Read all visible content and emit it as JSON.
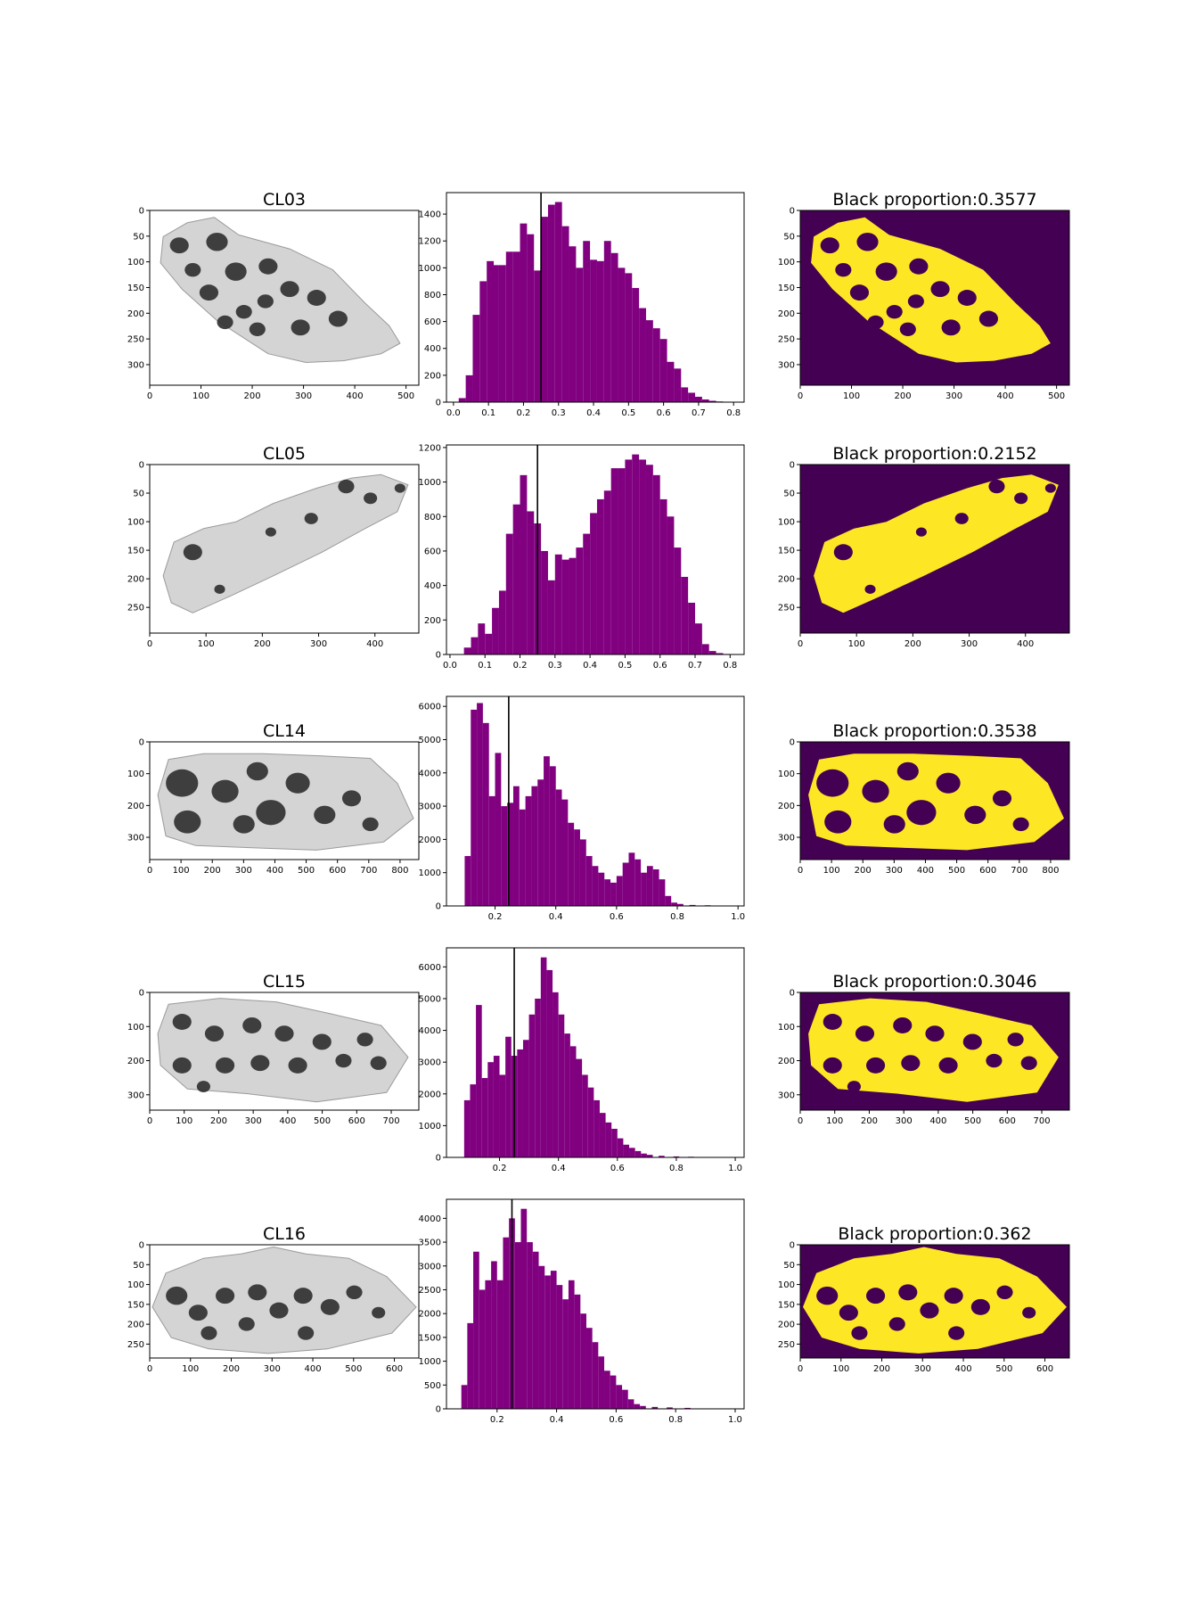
{
  "colors": {
    "histogram_bar": "#800080",
    "threshold_line": "#000000",
    "mask_background": "#440154",
    "mask_foreground": "#fde725",
    "gray_light": "#d4d4d4",
    "gray_dark": "#2e2e2e"
  },
  "chart_data": [
    {
      "type": "image",
      "title": "CL03",
      "image_content": "grayscale-specimen-photo",
      "xlim": [
        0,
        525
      ],
      "ylim": [
        340,
        0
      ],
      "xticks": [
        "0",
        "100",
        "200",
        "300",
        "400",
        "500"
      ],
      "yticks": [
        "0",
        "50",
        "100",
        "150",
        "200",
        "250",
        "300"
      ],
      "ytick_values": [
        0,
        50,
        100,
        150,
        200,
        250,
        300
      ]
    },
    {
      "type": "bar",
      "title": "",
      "xlim": [
        -0.02,
        0.83
      ],
      "ylim": [
        0,
        1560
      ],
      "xticks": [
        "0.0",
        "0.1",
        "0.2",
        "0.3",
        "0.4",
        "0.5",
        "0.6",
        "0.7",
        "0.8"
      ],
      "xtick_values": [
        0,
        0.1,
        0.2,
        0.3,
        0.4,
        0.5,
        0.6,
        0.7,
        0.8
      ],
      "yticks": [
        "0",
        "200",
        "400",
        "600",
        "800",
        "1000",
        "1200",
        "1400"
      ],
      "ytick_values": [
        0,
        200,
        400,
        600,
        800,
        1000,
        1200,
        1400
      ],
      "threshold": 0.25,
      "x": [
        0.025,
        0.045,
        0.065,
        0.085,
        0.105,
        0.12,
        0.14,
        0.16,
        0.18,
        0.2,
        0.22,
        0.24,
        0.26,
        0.28,
        0.3,
        0.32,
        0.34,
        0.36,
        0.38,
        0.4,
        0.42,
        0.44,
        0.46,
        0.48,
        0.5,
        0.52,
        0.54,
        0.56,
        0.58,
        0.6,
        0.62,
        0.64,
        0.66,
        0.68,
        0.7,
        0.72,
        0.74,
        0.76,
        0.78
      ],
      "values": [
        30,
        200,
        650,
        900,
        1050,
        1020,
        1020,
        1120,
        1120,
        1330,
        1250,
        980,
        1380,
        1470,
        1490,
        1310,
        1160,
        1000,
        1200,
        1060,
        1050,
        1200,
        1110,
        1000,
        960,
        850,
        700,
        610,
        550,
        470,
        300,
        250,
        110,
        70,
        40,
        20,
        10,
        5,
        2
      ]
    },
    {
      "type": "image",
      "title": "Black proportion:0.3577",
      "image_content": "binary-mask",
      "xlim": [
        0,
        525
      ],
      "ylim": [
        340,
        0
      ],
      "xticks": [
        "0",
        "100",
        "200",
        "300",
        "400",
        "500"
      ],
      "yticks": [
        "0",
        "50",
        "100",
        "150",
        "200",
        "250",
        "300"
      ],
      "ytick_values": [
        0,
        50,
        100,
        150,
        200,
        250,
        300
      ]
    },
    {
      "type": "image",
      "title": "CL05",
      "image_content": "grayscale-specimen-photo",
      "xlim": [
        0,
        478
      ],
      "ylim": [
        295,
        0
      ],
      "xticks": [
        "0",
        "100",
        "200",
        "300",
        "400"
      ],
      "yticks": [
        "0",
        "50",
        "100",
        "150",
        "200",
        "250"
      ],
      "ytick_values": [
        0,
        50,
        100,
        150,
        200,
        250
      ]
    },
    {
      "type": "bar",
      "title": "",
      "xlim": [
        -0.01,
        0.84
      ],
      "ylim": [
        0,
        1215
      ],
      "xticks": [
        "0.0",
        "0.1",
        "0.2",
        "0.3",
        "0.4",
        "0.5",
        "0.6",
        "0.7",
        "0.8"
      ],
      "xtick_values": [
        0,
        0.1,
        0.2,
        0.3,
        0.4,
        0.5,
        0.6,
        0.7,
        0.8
      ],
      "yticks": [
        "0",
        "200",
        "400",
        "600",
        "800",
        "1000",
        "1200"
      ],
      "ytick_values": [
        0,
        200,
        400,
        600,
        800,
        1000,
        1200
      ],
      "threshold": 0.25,
      "x": [
        0.05,
        0.07,
        0.09,
        0.11,
        0.13,
        0.15,
        0.17,
        0.19,
        0.21,
        0.23,
        0.25,
        0.27,
        0.29,
        0.31,
        0.33,
        0.35,
        0.37,
        0.39,
        0.41,
        0.43,
        0.45,
        0.47,
        0.49,
        0.51,
        0.53,
        0.55,
        0.57,
        0.59,
        0.61,
        0.63,
        0.65,
        0.67,
        0.69,
        0.71,
        0.73,
        0.75,
        0.77,
        0.79
      ],
      "values": [
        40,
        100,
        180,
        120,
        270,
        370,
        700,
        870,
        1040,
        830,
        760,
        600,
        430,
        580,
        550,
        560,
        620,
        700,
        820,
        900,
        950,
        1080,
        1080,
        1130,
        1160,
        1130,
        1100,
        1040,
        900,
        800,
        620,
        450,
        300,
        180,
        60,
        20,
        8,
        3
      ]
    },
    {
      "type": "image",
      "title": "Black proportion:0.2152",
      "image_content": "binary-mask",
      "xlim": [
        0,
        478
      ],
      "ylim": [
        295,
        0
      ],
      "xticks": [
        "0",
        "100",
        "200",
        "300",
        "400"
      ],
      "yticks": [
        "0",
        "50",
        "100",
        "150",
        "200",
        "250"
      ],
      "ytick_values": [
        0,
        50,
        100,
        150,
        200,
        250
      ]
    },
    {
      "type": "image",
      "title": "CL14",
      "image_content": "grayscale-specimen-photo",
      "xlim": [
        0,
        860
      ],
      "ylim": [
        370,
        0
      ],
      "xticks": [
        "0",
        "100",
        "200",
        "300",
        "400",
        "500",
        "600",
        "700",
        "800"
      ],
      "yticks": [
        "0",
        "100",
        "200",
        "300"
      ],
      "ytick_values": [
        0,
        100,
        200,
        300
      ]
    },
    {
      "type": "bar",
      "title": "",
      "xlim": [
        0.04,
        1.02
      ],
      "ylim": [
        0,
        6300
      ],
      "xticks": [
        "0.2",
        "0.4",
        "0.6",
        "0.8",
        "1.0"
      ],
      "xtick_values": [
        0.2,
        0.4,
        0.6,
        0.8,
        1.0
      ],
      "yticks": [
        "0",
        "1000",
        "2000",
        "3000",
        "4000",
        "5000",
        "6000"
      ],
      "ytick_values": [
        0,
        1000,
        2000,
        3000,
        4000,
        5000,
        6000
      ],
      "threshold": 0.245,
      "x": [
        0.11,
        0.13,
        0.15,
        0.17,
        0.19,
        0.21,
        0.23,
        0.25,
        0.27,
        0.29,
        0.31,
        0.33,
        0.35,
        0.37,
        0.39,
        0.41,
        0.43,
        0.45,
        0.47,
        0.49,
        0.51,
        0.53,
        0.55,
        0.57,
        0.59,
        0.61,
        0.63,
        0.65,
        0.67,
        0.69,
        0.71,
        0.73,
        0.75,
        0.77,
        0.79,
        0.81,
        0.85,
        0.9,
        0.95
      ],
      "values": [
        1500,
        5900,
        6100,
        5500,
        3300,
        4600,
        3000,
        3100,
        3600,
        2900,
        3300,
        3600,
        3800,
        4500,
        4200,
        3500,
        3200,
        2500,
        2300,
        2000,
        1500,
        1200,
        1000,
        800,
        700,
        900,
        1300,
        1600,
        1400,
        1000,
        1200,
        1100,
        800,
        300,
        100,
        60,
        30,
        20,
        10
      ]
    },
    {
      "type": "image",
      "title": "Black proportion:0.3538",
      "image_content": "binary-mask",
      "xlim": [
        0,
        860
      ],
      "ylim": [
        370,
        0
      ],
      "xticks": [
        "0",
        "100",
        "200",
        "300",
        "400",
        "500",
        "600",
        "700",
        "800"
      ],
      "yticks": [
        "0",
        "100",
        "200",
        "300"
      ],
      "ytick_values": [
        0,
        100,
        200,
        300
      ]
    },
    {
      "type": "image",
      "title": "CL15",
      "image_content": "grayscale-specimen-photo",
      "xlim": [
        0,
        780
      ],
      "ylim": [
        345,
        0
      ],
      "xticks": [
        "0",
        "100",
        "200",
        "300",
        "400",
        "500",
        "600",
        "700"
      ],
      "yticks": [
        "0",
        "100",
        "200",
        "300"
      ],
      "ytick_values": [
        0,
        100,
        200,
        300
      ]
    },
    {
      "type": "bar",
      "title": "",
      "xlim": [
        0.02,
        1.03
      ],
      "ylim": [
        0,
        6600
      ],
      "xticks": [
        "0.2",
        "0.4",
        "0.6",
        "0.8",
        "1.0"
      ],
      "xtick_values": [
        0.2,
        0.4,
        0.6,
        0.8,
        1.0
      ],
      "yticks": [
        "0",
        "1000",
        "2000",
        "3000",
        "4000",
        "5000",
        "6000"
      ],
      "ytick_values": [
        0,
        1000,
        2000,
        3000,
        4000,
        5000,
        6000
      ],
      "threshold": 0.25,
      "x": [
        0.09,
        0.11,
        0.13,
        0.15,
        0.17,
        0.19,
        0.21,
        0.23,
        0.25,
        0.27,
        0.29,
        0.31,
        0.33,
        0.35,
        0.37,
        0.39,
        0.41,
        0.43,
        0.45,
        0.47,
        0.49,
        0.51,
        0.53,
        0.55,
        0.57,
        0.59,
        0.61,
        0.63,
        0.65,
        0.67,
        0.69,
        0.71,
        0.75,
        0.8,
        0.85
      ],
      "values": [
        1800,
        2300,
        4800,
        2500,
        3000,
        3200,
        2600,
        3800,
        3200,
        3400,
        3700,
        4500,
        5000,
        6300,
        5900,
        5200,
        4500,
        3900,
        3500,
        3100,
        2600,
        2200,
        1800,
        1400,
        1100,
        900,
        600,
        400,
        300,
        200,
        120,
        80,
        50,
        30,
        20
      ]
    },
    {
      "type": "image",
      "title": "Black proportion:0.3046",
      "image_content": "binary-mask",
      "xlim": [
        0,
        780
      ],
      "ylim": [
        345,
        0
      ],
      "xticks": [
        "0",
        "100",
        "200",
        "300",
        "400",
        "500",
        "600",
        "700"
      ],
      "yticks": [
        "0",
        "100",
        "200",
        "300"
      ],
      "ytick_values": [
        0,
        100,
        200,
        300
      ]
    },
    {
      "type": "image",
      "title": "CL16",
      "image_content": "grayscale-specimen-photo",
      "xlim": [
        0,
        660
      ],
      "ylim": [
        285,
        0
      ],
      "xticks": [
        "0",
        "100",
        "200",
        "300",
        "400",
        "500",
        "600"
      ],
      "yticks": [
        "0",
        "50",
        "100",
        "150",
        "200",
        "250"
      ],
      "ytick_values": [
        0,
        50,
        100,
        150,
        200,
        250
      ]
    },
    {
      "type": "bar",
      "title": "",
      "xlim": [
        0.03,
        1.03
      ],
      "ylim": [
        0,
        4400
      ],
      "xticks": [
        "0.2",
        "0.4",
        "0.6",
        "0.8",
        "1.0"
      ],
      "xtick_values": [
        0.2,
        0.4,
        0.6,
        0.8,
        1.0
      ],
      "yticks": [
        "0",
        "500",
        "1000",
        "1500",
        "2000",
        "2500",
        "3000",
        "3500",
        "4000"
      ],
      "ytick_values": [
        0,
        500,
        1000,
        1500,
        2000,
        2500,
        3000,
        3500,
        4000
      ],
      "threshold": 0.25,
      "x": [
        0.09,
        0.11,
        0.13,
        0.15,
        0.17,
        0.19,
        0.21,
        0.23,
        0.25,
        0.27,
        0.29,
        0.31,
        0.33,
        0.35,
        0.37,
        0.39,
        0.41,
        0.43,
        0.45,
        0.47,
        0.49,
        0.51,
        0.53,
        0.55,
        0.57,
        0.59,
        0.61,
        0.63,
        0.65,
        0.67,
        0.69,
        0.73,
        0.78,
        0.84
      ],
      "values": [
        500,
        1800,
        3300,
        2500,
        2700,
        3100,
        2700,
        3600,
        4000,
        3500,
        4200,
        3500,
        3300,
        3000,
        2800,
        2900,
        2600,
        2300,
        2700,
        2400,
        2000,
        1700,
        1400,
        1100,
        800,
        700,
        500,
        400,
        200,
        100,
        60,
        40,
        30,
        20
      ]
    },
    {
      "type": "image",
      "title": "Black proportion:0.362",
      "image_content": "binary-mask",
      "xlim": [
        0,
        660
      ],
      "ylim": [
        285,
        0
      ],
      "xticks": [
        "0",
        "100",
        "200",
        "300",
        "400",
        "500",
        "600"
      ],
      "yticks": [
        "0",
        "50",
        "100",
        "150",
        "200",
        "250"
      ],
      "ytick_values": [
        0,
        50,
        100,
        150,
        200,
        250
      ]
    }
  ]
}
